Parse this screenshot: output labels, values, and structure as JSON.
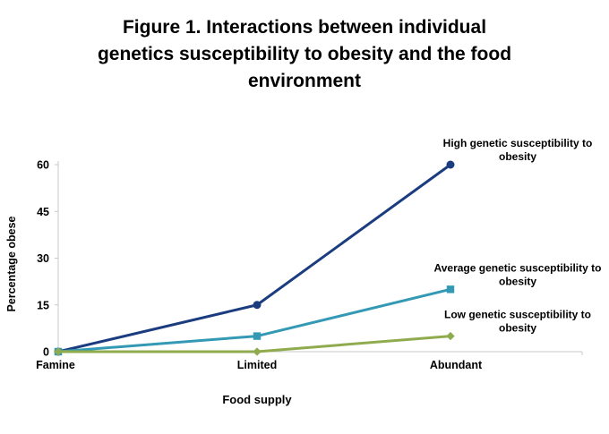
{
  "chart_data": {
    "type": "line",
    "title": "Figure 1. Interactions between individual\ngenetics susceptibility to obesity and the food\nenvironment",
    "categories": [
      "Famine",
      "Limited",
      "Abundant"
    ],
    "series": [
      {
        "name": "High genetic susceptibility to obesity",
        "values": [
          0,
          15,
          60
        ],
        "color": "#1B3D80",
        "marker": "circle"
      },
      {
        "name": "Average genetic susceptibility to obesity",
        "values": [
          0,
          5,
          20
        ],
        "color": "#3399B4",
        "marker": "square"
      },
      {
        "name": "Low genetic susceptibility to obesity",
        "values": [
          0,
          0,
          5
        ],
        "color": "#8FAB4E",
        "marker": "diamond"
      }
    ],
    "xlabel": "Food supply",
    "ylabel": "Percentage obese",
    "ylim": [
      0,
      60
    ],
    "yticks": [
      0,
      15,
      30,
      45,
      60
    ],
    "grid": false,
    "legend_position": "end-of-line annotations, each wrapped to two centered lines",
    "axis_color": "#C9C9C9",
    "text_color": "#000000",
    "background_color": "#FFFFFF",
    "line_width": 3
  }
}
